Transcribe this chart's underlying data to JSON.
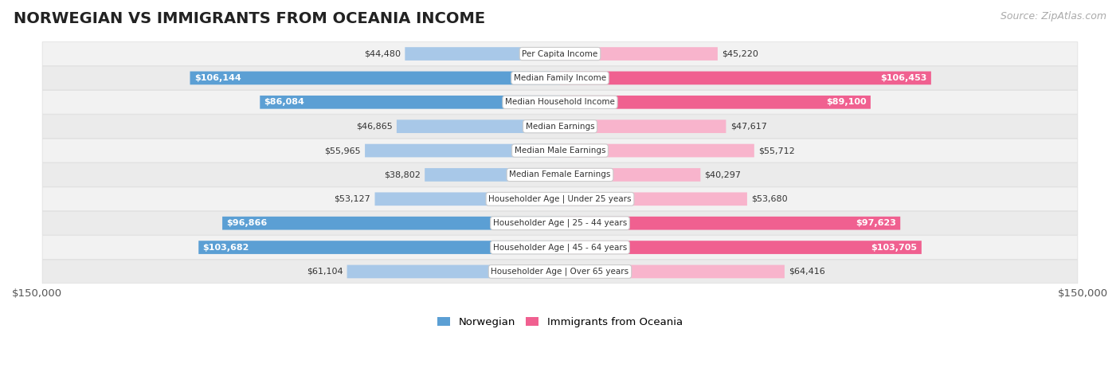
{
  "title": "NORWEGIAN VS IMMIGRANTS FROM OCEANIA INCOME",
  "source": "Source: ZipAtlas.com",
  "categories": [
    "Per Capita Income",
    "Median Family Income",
    "Median Household Income",
    "Median Earnings",
    "Median Male Earnings",
    "Median Female Earnings",
    "Householder Age | Under 25 years",
    "Householder Age | 25 - 44 years",
    "Householder Age | 45 - 64 years",
    "Householder Age | Over 65 years"
  ],
  "norwegian": [
    44480,
    106144,
    86084,
    46865,
    55965,
    38802,
    53127,
    96866,
    103682,
    61104
  ],
  "immigrants": [
    45220,
    106453,
    89100,
    47617,
    55712,
    40297,
    53680,
    97623,
    103705,
    64416
  ],
  "norwegian_labels": [
    "$44,480",
    "$106,144",
    "$86,084",
    "$46,865",
    "$55,965",
    "$38,802",
    "$53,127",
    "$96,866",
    "$103,682",
    "$61,104"
  ],
  "immigrants_labels": [
    "$45,220",
    "$106,453",
    "$89,100",
    "$47,617",
    "$55,712",
    "$40,297",
    "$53,680",
    "$97,623",
    "$103,705",
    "$64,416"
  ],
  "max_val": 150000,
  "norw_light": "#a8c8e8",
  "norw_dark": "#5b9fd4",
  "immig_light": "#f8b4cc",
  "immig_dark": "#f06090",
  "big_threshold": 80000,
  "row_colors": [
    "#f2f2f2",
    "#ebebeb"
  ],
  "title_fontsize": 14,
  "source_fontsize": 9,
  "bar_label_fontsize": 8,
  "cat_label_fontsize": 7.5
}
